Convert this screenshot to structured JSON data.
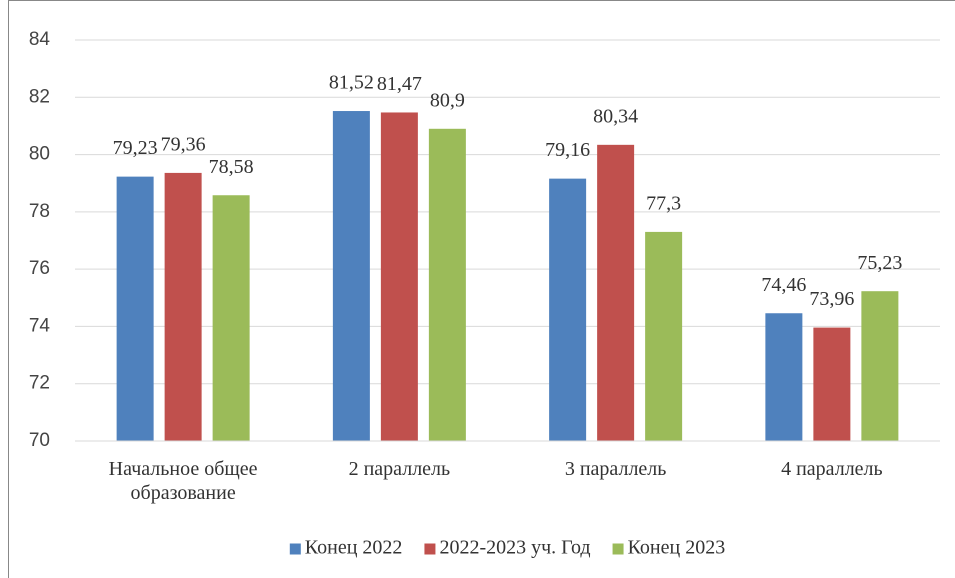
{
  "chart_data": {
    "type": "bar",
    "categories": [
      "Начальное общее образование",
      "2 параллель",
      "3 параллель",
      "4 параллель"
    ],
    "series": [
      {
        "name": "Конец 2022",
        "color": "#4f81bd",
        "values": [
          79.23,
          81.52,
          79.16,
          74.46
        ],
        "value_labels": [
          "79,23",
          "81,52",
          "79,16",
          "74,46"
        ]
      },
      {
        "name": "2022-2023 уч. Год",
        "color": "#c0504d",
        "values": [
          79.36,
          81.47,
          80.34,
          73.96
        ],
        "value_labels": [
          "79,36",
          "81,47",
          "80,34",
          "73,96"
        ]
      },
      {
        "name": "Конец 2023",
        "color": "#9bbb59",
        "values": [
          78.58,
          80.9,
          77.3,
          75.23
        ],
        "value_labels": [
          "78,58",
          "80,9",
          "77,3",
          "75,23"
        ]
      }
    ],
    "ylim": [
      70,
      84
    ],
    "yticks": [
      70,
      72,
      74,
      76,
      78,
      80,
      82,
      84
    ],
    "grid": true,
    "legend": "bottom"
  }
}
